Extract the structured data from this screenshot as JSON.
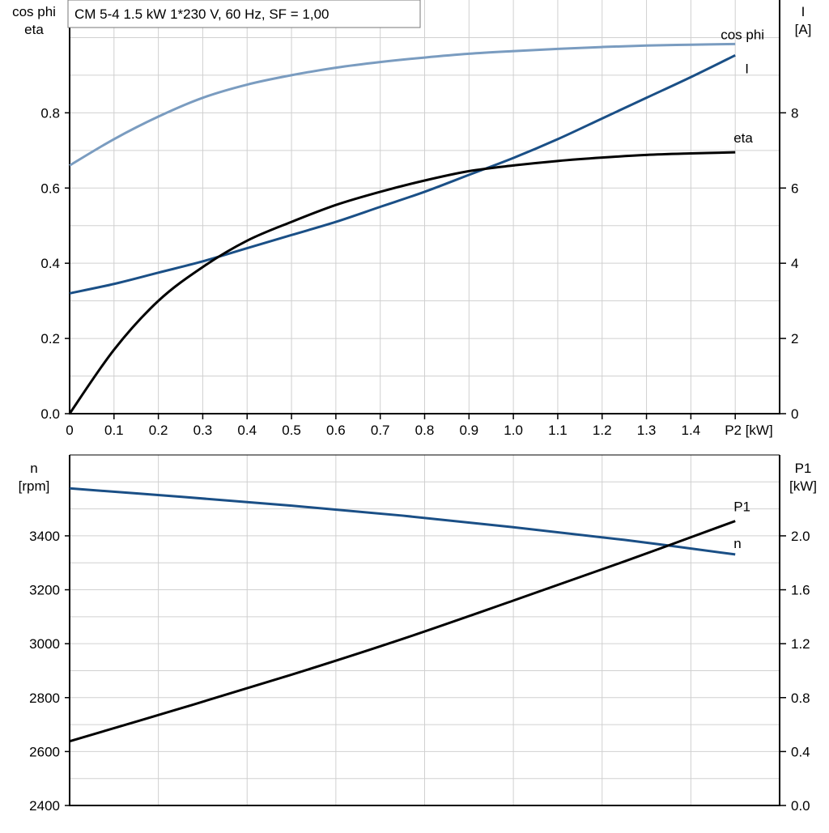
{
  "chart_data": [
    {
      "type": "line",
      "title": "CM 5-4   1.5 kW   1*230 V, 60 Hz, SF = 1,00",
      "xlabel": "P2 [kW]",
      "ylabel_left": [
        "cos phi",
        "eta"
      ],
      "ylabel_right": [
        "I",
        "[A]"
      ],
      "xlim": [
        0,
        1.6
      ],
      "ylim_left": [
        0,
        1.1
      ],
      "ylim_right": [
        0,
        11
      ],
      "grid": true,
      "x_ticks": [
        "0",
        "0.1",
        "0.2",
        "0.3",
        "0.4",
        "0.5",
        "0.6",
        "0.7",
        "0.8",
        "0.9",
        "1.0",
        "1.1",
        "1.2",
        "1.3",
        "1.4",
        "P2 [kW]"
      ],
      "y_ticks_left": [
        "0.0",
        "0.2",
        "0.4",
        "0.6",
        "0.8"
      ],
      "y_ticks_right": [
        "0",
        "2",
        "4",
        "6",
        "8"
      ],
      "x": [
        0,
        0.1,
        0.2,
        0.3,
        0.4,
        0.5,
        0.6,
        0.7,
        0.8,
        0.9,
        1.0,
        1.1,
        1.2,
        1.3,
        1.4,
        1.5
      ],
      "series": [
        {
          "name": "cos phi",
          "axis": "left",
          "color": "#7a9cc0",
          "values": [
            0.66,
            0.73,
            0.79,
            0.84,
            0.875,
            0.9,
            0.92,
            0.935,
            0.947,
            0.957,
            0.964,
            0.97,
            0.975,
            0.979,
            0.981,
            0.983
          ]
        },
        {
          "name": "I",
          "axis": "right",
          "color": "#1a4f86",
          "values": [
            3.2,
            3.45,
            3.75,
            4.05,
            4.4,
            4.75,
            5.1,
            5.5,
            5.9,
            6.35,
            6.8,
            7.3,
            7.85,
            8.4,
            8.95,
            9.53
          ]
        },
        {
          "name": "eta",
          "axis": "left",
          "color": "#000000",
          "values": [
            0.0,
            0.17,
            0.3,
            0.39,
            0.46,
            0.51,
            0.555,
            0.59,
            0.62,
            0.645,
            0.66,
            0.672,
            0.681,
            0.688,
            0.692,
            0.695
          ]
        }
      ]
    },
    {
      "type": "line",
      "ylabel_left": [
        "n",
        "[rpm]"
      ],
      "ylabel_right": [
        "P1",
        "[kW]"
      ],
      "xlim": [
        0,
        1.6
      ],
      "ylim_left": [
        2400,
        3700
      ],
      "ylim_right": [
        0,
        2.6
      ],
      "grid": true,
      "y_ticks_left": [
        "2400",
        "2600",
        "2800",
        "3000",
        "3200",
        "3400"
      ],
      "y_ticks_right": [
        "0.0",
        "0.4",
        "0.8",
        "1.2",
        "1.6",
        "2.0"
      ],
      "x": [
        0,
        0.25,
        0.5,
        0.75,
        1.0,
        1.25,
        1.5
      ],
      "series": [
        {
          "name": "n",
          "axis": "left",
          "color": "#1a4f86",
          "values": [
            3576,
            3545,
            3512,
            3475,
            3432,
            3385,
            3331
          ]
        },
        {
          "name": "P1",
          "axis": "right",
          "color": "#000000",
          "values": [
            0.476,
            0.72,
            0.97,
            1.235,
            1.52,
            1.81,
            2.11
          ]
        }
      ]
    }
  ]
}
